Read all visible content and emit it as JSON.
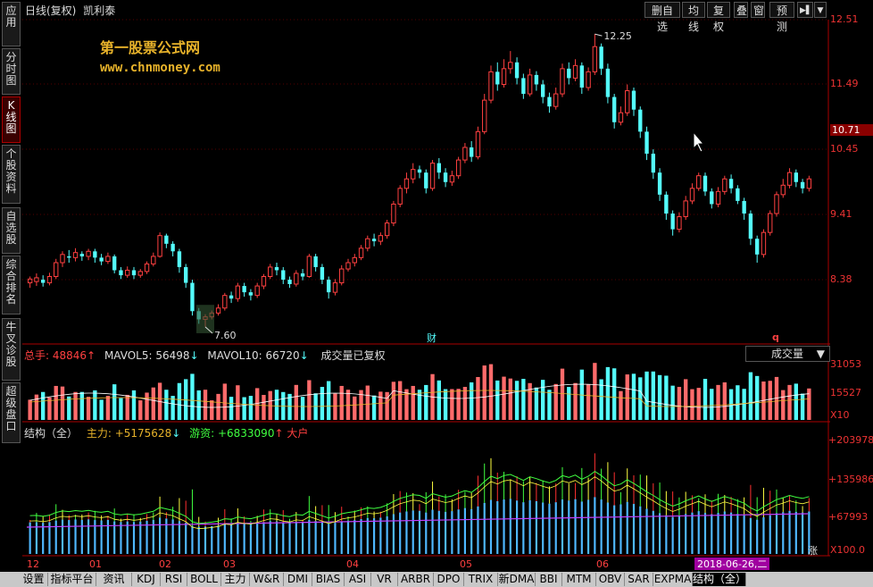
{
  "window": {
    "title": "日线(复权)",
    "stock_name": "凯利泰"
  },
  "sidebar": {
    "tabs": [
      {
        "label": "应用"
      },
      {
        "label": "分时图"
      },
      {
        "label": "K线图",
        "active": true
      },
      {
        "label": "个股资料"
      },
      {
        "label": "自选股"
      },
      {
        "label": "综合排名"
      },
      {
        "label": "牛叉诊股"
      },
      {
        "label": "超级盘口"
      }
    ]
  },
  "toolbar": {
    "buttons": [
      "删自选",
      "均线",
      "复权",
      "叠",
      "窗",
      "预测"
    ],
    "play_icon": "play-icon",
    "dropdown_icon": "chevron-down-icon"
  },
  "watermark": {
    "line1": "第一股票公式网",
    "line2": "www.chnmoney.com"
  },
  "price_axis": {
    "labels": [
      "12.51",
      "11.49",
      "10.71",
      "10.45",
      "9.41",
      "8.38"
    ],
    "highlight": "10.71"
  },
  "annotations": {
    "high": "12.25",
    "low": "7.60",
    "marker_cai": "财",
    "marker_q": "q"
  },
  "volume_pane": {
    "total_label": "总手: 48846",
    "mavol5": "MAVOL5: 56498",
    "mavol10": "MAVOL10: 66720",
    "note": "成交量已复权",
    "select_value": "成交量",
    "axis": [
      "31053",
      "15527",
      "X10"
    ]
  },
  "indicator_pane": {
    "name": "结构（全）",
    "main": "主力: +5175628",
    "retail": "游资: +6833090",
    "big": "大户",
    "axis": [
      "+203978",
      "+135986",
      "+67993",
      "X100.0"
    ],
    "zhang": "涨"
  },
  "date_axis": {
    "labels": [
      "12",
      "01",
      "02",
      "03",
      "04",
      "05",
      "06"
    ],
    "current": "2018-06-26,二"
  },
  "bottom_tabs": [
    "设置",
    "指标平台",
    "资讯",
    "KDJ",
    "RSI",
    "BOLL",
    "主力",
    "W&R",
    "DMI",
    "BIAS",
    "ASI",
    "VR",
    "ARBR",
    "DPO",
    "TRIX",
    "新DMA",
    "BBI",
    "MTM",
    "OBV",
    "SAR",
    "EXPMA",
    "结构（全）"
  ],
  "colors": {
    "up": "#ff4040",
    "down": "#54fcfc",
    "accent": "#e7b22a",
    "highlight_bg": "#a00000"
  },
  "chart_data": {
    "type": "candlestick",
    "price_range": [
      7.4,
      12.62
    ],
    "bars": [
      [
        8.3,
        8.36,
        8.22,
        8.4
      ],
      [
        8.32,
        8.38,
        8.25,
        8.45
      ],
      [
        8.35,
        8.3,
        8.24,
        8.42
      ],
      [
        8.3,
        8.4,
        8.26,
        8.46
      ],
      [
        8.4,
        8.62,
        8.36,
        8.68
      ],
      [
        8.62,
        8.75,
        8.55,
        8.8
      ],
      [
        8.72,
        8.7,
        8.62,
        8.82
      ],
      [
        8.7,
        8.78,
        8.64,
        8.85
      ],
      [
        8.76,
        8.72,
        8.65,
        8.8
      ],
      [
        8.72,
        8.8,
        8.66,
        8.84
      ],
      [
        8.8,
        8.7,
        8.62,
        8.84
      ],
      [
        8.7,
        8.64,
        8.58,
        8.76
      ],
      [
        8.64,
        8.72,
        8.6,
        8.78
      ],
      [
        8.72,
        8.5,
        8.45,
        8.75
      ],
      [
        8.5,
        8.42,
        8.36,
        8.55
      ],
      [
        8.42,
        8.5,
        8.38,
        8.56
      ],
      [
        8.5,
        8.42,
        8.36,
        8.55
      ],
      [
        8.42,
        8.48,
        8.38,
        8.52
      ],
      [
        8.48,
        8.6,
        8.44,
        8.64
      ],
      [
        8.6,
        8.72,
        8.56,
        8.78
      ],
      [
        8.72,
        9.05,
        8.7,
        9.1
      ],
      [
        9.05,
        8.92,
        8.85,
        9.08
      ],
      [
        8.92,
        8.8,
        8.72,
        8.96
      ],
      [
        8.8,
        8.55,
        8.46,
        8.84
      ],
      [
        8.55,
        8.3,
        8.22,
        8.6
      ],
      [
        8.3,
        7.85,
        7.78,
        8.35
      ],
      [
        7.85,
        7.72,
        7.65,
        7.9
      ],
      [
        7.72,
        7.76,
        7.6,
        7.8
      ],
      [
        7.76,
        7.82,
        7.72,
        7.86
      ],
      [
        7.82,
        7.9,
        7.78,
        7.96
      ],
      [
        7.9,
        8.1,
        7.86,
        8.14
      ],
      [
        8.1,
        8.05,
        7.98,
        8.16
      ],
      [
        8.05,
        8.25,
        8.0,
        8.3
      ],
      [
        8.25,
        8.15,
        8.08,
        8.3
      ],
      [
        8.15,
        8.1,
        8.02,
        8.2
      ],
      [
        8.1,
        8.25,
        8.06,
        8.3
      ],
      [
        8.25,
        8.4,
        8.2,
        8.44
      ],
      [
        8.4,
        8.55,
        8.36,
        8.6
      ],
      [
        8.55,
        8.5,
        8.42,
        8.62
      ],
      [
        8.5,
        8.35,
        8.28,
        8.55
      ],
      [
        8.35,
        8.28,
        8.22,
        8.4
      ],
      [
        8.28,
        8.45,
        8.24,
        8.5
      ],
      [
        8.45,
        8.4,
        8.34,
        8.52
      ],
      [
        8.4,
        8.72,
        8.38,
        8.76
      ],
      [
        8.72,
        8.55,
        8.48,
        8.76
      ],
      [
        8.55,
        8.35,
        8.28,
        8.6
      ],
      [
        8.35,
        8.15,
        8.05,
        8.4
      ],
      [
        8.15,
        8.3,
        8.1,
        8.36
      ],
      [
        8.3,
        8.52,
        8.26,
        8.58
      ],
      [
        8.52,
        8.62,
        8.48,
        8.68
      ],
      [
        8.62,
        8.7,
        8.56,
        8.76
      ],
      [
        8.7,
        8.85,
        8.66,
        8.9
      ],
      [
        8.85,
        9.0,
        8.8,
        9.05
      ],
      [
        9.0,
        8.96,
        8.88,
        9.08
      ],
      [
        8.96,
        9.05,
        8.9,
        9.1
      ],
      [
        9.05,
        9.25,
        9.0,
        9.3
      ],
      [
        9.25,
        9.55,
        9.2,
        9.6
      ],
      [
        9.55,
        9.8,
        9.5,
        9.85
      ],
      [
        9.8,
        9.95,
        9.72,
        10.05
      ],
      [
        9.95,
        10.1,
        9.88,
        10.2
      ],
      [
        10.1,
        10.05,
        9.96,
        10.16
      ],
      [
        10.05,
        9.8,
        9.72,
        10.1
      ],
      [
        9.8,
        10.2,
        9.76,
        10.25
      ],
      [
        10.2,
        10.05,
        9.95,
        10.28
      ],
      [
        10.05,
        9.9,
        9.82,
        10.12
      ],
      [
        9.9,
        10.0,
        9.84,
        10.08
      ],
      [
        10.0,
        10.25,
        9.95,
        10.3
      ],
      [
        10.25,
        10.45,
        10.2,
        10.52
      ],
      [
        10.45,
        10.3,
        10.22,
        10.55
      ],
      [
        10.3,
        10.7,
        10.26,
        10.78
      ],
      [
        10.7,
        11.2,
        10.66,
        11.3
      ],
      [
        11.2,
        11.65,
        11.15,
        11.75
      ],
      [
        11.65,
        11.45,
        11.35,
        11.8
      ],
      [
        11.45,
        11.7,
        11.4,
        11.85
      ],
      [
        11.7,
        11.8,
        11.62,
        11.98
      ],
      [
        11.8,
        11.55,
        11.45,
        11.88
      ],
      [
        11.55,
        11.3,
        11.22,
        11.62
      ],
      [
        11.3,
        11.6,
        11.26,
        11.7
      ],
      [
        11.6,
        11.45,
        11.35,
        11.66
      ],
      [
        11.45,
        11.25,
        11.15,
        11.52
      ],
      [
        11.25,
        11.1,
        11.0,
        11.32
      ],
      [
        11.1,
        11.3,
        11.05,
        11.4
      ],
      [
        11.3,
        11.7,
        11.25,
        11.78
      ],
      [
        11.7,
        11.55,
        11.45,
        11.8
      ],
      [
        11.55,
        11.75,
        11.5,
        11.85
      ],
      [
        11.75,
        11.4,
        11.3,
        11.8
      ],
      [
        11.4,
        11.65,
        11.35,
        11.72
      ],
      [
        11.65,
        12.05,
        11.6,
        12.25
      ],
      [
        12.05,
        11.7,
        11.6,
        12.1
      ],
      [
        11.7,
        11.25,
        11.15,
        11.78
      ],
      [
        11.25,
        10.85,
        10.75,
        11.3
      ],
      [
        10.85,
        11.0,
        10.8,
        11.1
      ],
      [
        11.0,
        11.35,
        10.95,
        11.45
      ],
      [
        11.35,
        11.05,
        10.95,
        11.4
      ],
      [
        11.05,
        10.7,
        10.6,
        11.1
      ],
      [
        10.7,
        10.35,
        10.25,
        10.78
      ],
      [
        10.35,
        10.05,
        9.95,
        10.42
      ],
      [
        10.05,
        9.7,
        9.6,
        10.12
      ],
      [
        9.7,
        9.4,
        9.3,
        9.75
      ],
      [
        9.4,
        9.15,
        9.05,
        9.45
      ],
      [
        9.15,
        9.35,
        9.1,
        9.42
      ],
      [
        9.35,
        9.6,
        9.3,
        9.68
      ],
      [
        9.6,
        9.8,
        9.55,
        9.88
      ],
      [
        9.8,
        10.0,
        9.76,
        10.05
      ],
      [
        10.0,
        9.75,
        9.68,
        10.05
      ],
      [
        9.75,
        9.55,
        9.48,
        9.8
      ],
      [
        9.55,
        9.75,
        9.5,
        9.82
      ],
      [
        9.75,
        9.95,
        9.7,
        10.0
      ],
      [
        9.95,
        9.8,
        9.72,
        10.02
      ],
      [
        9.8,
        9.6,
        9.55,
        9.85
      ],
      [
        9.6,
        9.4,
        9.3,
        9.65
      ],
      [
        9.4,
        9.0,
        8.9,
        9.45
      ],
      [
        9.0,
        8.75,
        8.62,
        9.05
      ],
      [
        8.75,
        9.1,
        8.7,
        9.15
      ],
      [
        9.1,
        9.4,
        9.05,
        9.45
      ],
      [
        9.4,
        9.7,
        9.35,
        9.75
      ],
      [
        9.7,
        9.85,
        9.65,
        9.95
      ],
      [
        9.85,
        10.05,
        9.8,
        10.12
      ],
      [
        10.05,
        9.9,
        9.82,
        10.1
      ],
      [
        9.9,
        9.8,
        9.72,
        9.95
      ],
      [
        9.8,
        9.95,
        9.75,
        10.0
      ]
    ]
  }
}
